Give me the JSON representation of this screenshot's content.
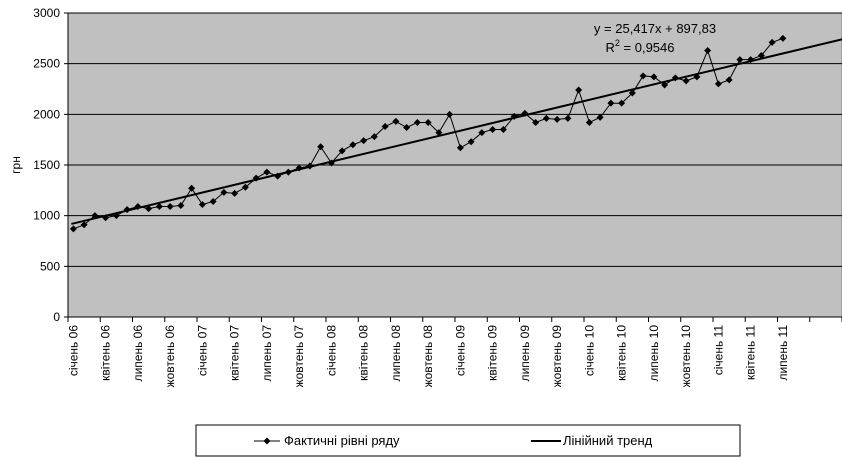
{
  "chart_data": {
    "type": "line",
    "ylabel": "грн",
    "ylim": [
      0,
      3000
    ],
    "yticks": [
      "0",
      "500",
      "1000",
      "1500",
      "2000",
      "2500",
      "3000"
    ],
    "grid": true,
    "legend_position": "bottom",
    "x_labels": [
      "січень 06",
      "квітень 06",
      "липень 06",
      "жовтень 06",
      "січень 07",
      "квітень 07",
      "липень 07",
      "жовтень 07",
      "січень 08",
      "квітень 08",
      "липень 08",
      "жовтень 08",
      "січень 09",
      "квітень 09",
      "липень 09",
      "жовтень 09",
      "січень 10",
      "квітень 10",
      "липень 10",
      "жовтень 10",
      "січень 11",
      "квітень 11",
      "липень 11"
    ],
    "series": [
      {
        "name": "Фактичні рівні ряду",
        "values": [
          870,
          910,
          1000,
          980,
          1000,
          1060,
          1090,
          1070,
          1090,
          1090,
          1100,
          1270,
          1110,
          1140,
          1230,
          1220,
          1280,
          1370,
          1430,
          1390,
          1430,
          1470,
          1490,
          1680,
          1520,
          1640,
          1700,
          1740,
          1780,
          1880,
          1930,
          1870,
          1920,
          1920,
          1820,
          2000,
          1670,
          1730,
          1820,
          1850,
          1850,
          1980,
          2010,
          1920,
          1960,
          1950,
          1960,
          2240,
          1920,
          1970,
          2110,
          2110,
          2210,
          2380,
          2370,
          2290,
          2360,
          2330,
          2370,
          2630,
          2300,
          2340,
          2540,
          2540,
          2580,
          2710,
          2750
        ]
      },
      {
        "name": "Лінійний тренд",
        "slope": 25.417,
        "intercept": 897.83
      }
    ],
    "annotations": {
      "equation": "y = 25,417x + 897,83",
      "r2_label": "R",
      "r2_sup": "2",
      "r2_value": " = 0,9546"
    },
    "colors": {
      "plot_bg": "#c0c0c0",
      "line": "#000000",
      "grid": "#000000"
    }
  }
}
